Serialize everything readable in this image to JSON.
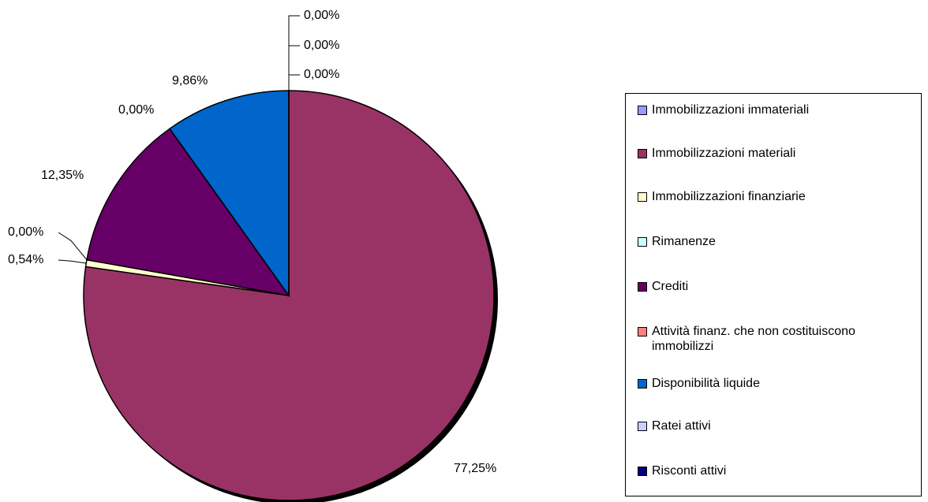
{
  "chart_data": {
    "type": "pie",
    "categories": [
      "Immobilizzazioni immateriali",
      "Immobilizzazioni materiali",
      "Immobilizzazioni finanziarie",
      "Rimanenze",
      "Crediti",
      "Attività finanz. che non costituiscono immobilizzi",
      "Disponibilità liquide",
      "Ratei attivi",
      "Risconti attivi"
    ],
    "values": [
      0,
      77.25,
      0.54,
      0,
      12.35,
      0,
      9.86,
      0,
      0
    ],
    "value_labels": [
      "0,00%",
      "77,25%",
      "0,54%",
      "0,00%",
      "12,35%",
      "0,00%",
      "9,86%",
      "0,00%",
      "0,00%"
    ],
    "colors": [
      "#9999ff",
      "#993366",
      "#ffffcc",
      "#ccffff",
      "#660066",
      "#ff8080",
      "#0066cc",
      "#ccccff",
      "#000080"
    ],
    "legend": "right"
  }
}
